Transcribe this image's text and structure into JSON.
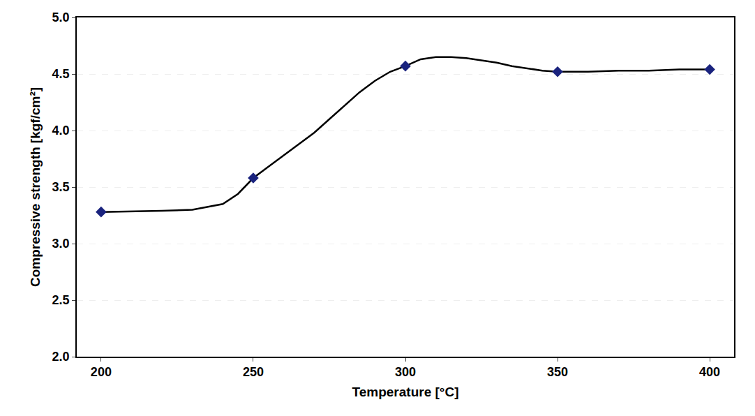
{
  "chart_data": {
    "type": "line",
    "xlabel": "Temperature [°C]",
    "ylabel": "Compressive strength [kgf/cm²]",
    "series": [
      {
        "x": [
          200,
          210,
          220,
          230,
          240,
          245,
          250,
          255,
          260,
          265,
          270,
          275,
          280,
          285,
          290,
          295,
          300,
          305,
          310,
          315,
          320,
          325,
          330,
          335,
          340,
          345,
          350,
          360,
          370,
          380,
          390,
          400
        ],
        "values": [
          3.28,
          3.285,
          3.29,
          3.3,
          3.35,
          3.44,
          3.58,
          3.68,
          3.78,
          3.88,
          3.98,
          4.1,
          4.22,
          4.34,
          4.44,
          4.52,
          4.57,
          4.63,
          4.65,
          4.65,
          4.64,
          4.62,
          4.6,
          4.57,
          4.55,
          4.53,
          4.52,
          4.52,
          4.53,
          4.53,
          4.54,
          4.54
        ],
        "color": "#000000",
        "marker": "none",
        "line_style": "solid"
      },
      {
        "x": [
          200,
          250,
          300,
          350,
          400
        ],
        "values": [
          3.28,
          3.58,
          4.57,
          4.52,
          4.54
        ],
        "color": "#1a237e",
        "marker": "diamond",
        "line_style": "none"
      }
    ],
    "xlim": [
      192,
      408
    ],
    "ylim": [
      2.0,
      5.0
    ],
    "xticks": [
      200,
      250,
      300,
      350,
      400
    ],
    "yticks": [
      {
        "value": 2.0,
        "label": "2.0"
      },
      2.5,
      {
        "value": 3.0,
        "label": "3.0"
      },
      3.5,
      {
        "value": 4.0,
        "label": "4.0"
      },
      4.5,
      {
        "value": 5.0,
        "label": "5.0"
      }
    ],
    "grid": "y"
  }
}
